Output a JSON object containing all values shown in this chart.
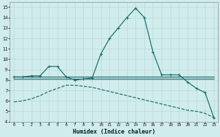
{
  "background_color": "#d0ecec",
  "grid_color": "#b8d8d8",
  "line_color": "#1a6b6b",
  "xlabel": "Humidex (Indice chaleur)",
  "xlim": [
    -0.5,
    23.5
  ],
  "ylim": [
    4,
    15.5
  ],
  "xticks": [
    0,
    1,
    2,
    3,
    4,
    5,
    6,
    7,
    8,
    9,
    10,
    11,
    12,
    13,
    14,
    15,
    16,
    17,
    18,
    19,
    20,
    21,
    22,
    23
  ],
  "yticks": [
    4,
    5,
    6,
    7,
    8,
    9,
    10,
    11,
    12,
    13,
    14,
    15
  ],
  "curve1_x": [
    0,
    1,
    2,
    3,
    4,
    5,
    6,
    7,
    8,
    9,
    10,
    11,
    12,
    13,
    14,
    15,
    16,
    17,
    18,
    19,
    20,
    21,
    22,
    23
  ],
  "curve1_y": [
    8.3,
    8.3,
    8.4,
    8.4,
    9.3,
    9.3,
    8.3,
    8.0,
    8.1,
    8.2,
    10.5,
    12.0,
    13.0,
    14.0,
    14.9,
    14.0,
    10.7,
    8.5,
    8.5,
    8.5,
    7.8,
    7.2,
    6.8,
    4.4
  ],
  "curve2_x": [
    0,
    1,
    2,
    3,
    4,
    5,
    6,
    7,
    8,
    9,
    10,
    11,
    12,
    13,
    14,
    15,
    16,
    17,
    18,
    19,
    20,
    21,
    22,
    23
  ],
  "curve2_y": [
    8.3,
    8.3,
    8.3,
    8.3,
    8.3,
    8.3,
    8.3,
    8.3,
    8.3,
    8.3,
    8.3,
    8.3,
    8.3,
    8.3,
    8.3,
    8.3,
    8.3,
    8.3,
    8.3,
    8.3,
    8.3,
    8.3,
    8.3,
    8.3
  ],
  "curve3_x": [
    0,
    1,
    2,
    3,
    4,
    5,
    6,
    7,
    8,
    9,
    10,
    11,
    12,
    13,
    14,
    15,
    16,
    17,
    18,
    19,
    20,
    21,
    22,
    23
  ],
  "curve3_y": [
    8.1,
    8.1,
    8.1,
    8.1,
    8.1,
    8.1,
    8.1,
    8.1,
    8.1,
    8.1,
    8.1,
    8.1,
    8.1,
    8.1,
    8.1,
    8.1,
    8.1,
    8.1,
    8.1,
    8.1,
    8.1,
    8.1,
    8.1,
    8.1
  ],
  "curve4_x": [
    0,
    1,
    2,
    3,
    4,
    5,
    6,
    7,
    8,
    9,
    10,
    11,
    12,
    13,
    14,
    15,
    16,
    17,
    18,
    19,
    20,
    21,
    22,
    23
  ],
  "curve4_y": [
    5.9,
    6.0,
    6.2,
    6.5,
    6.9,
    7.2,
    7.5,
    7.5,
    7.4,
    7.3,
    7.1,
    6.9,
    6.7,
    6.5,
    6.3,
    6.1,
    5.9,
    5.7,
    5.5,
    5.3,
    5.1,
    5.0,
    4.8,
    4.4
  ]
}
